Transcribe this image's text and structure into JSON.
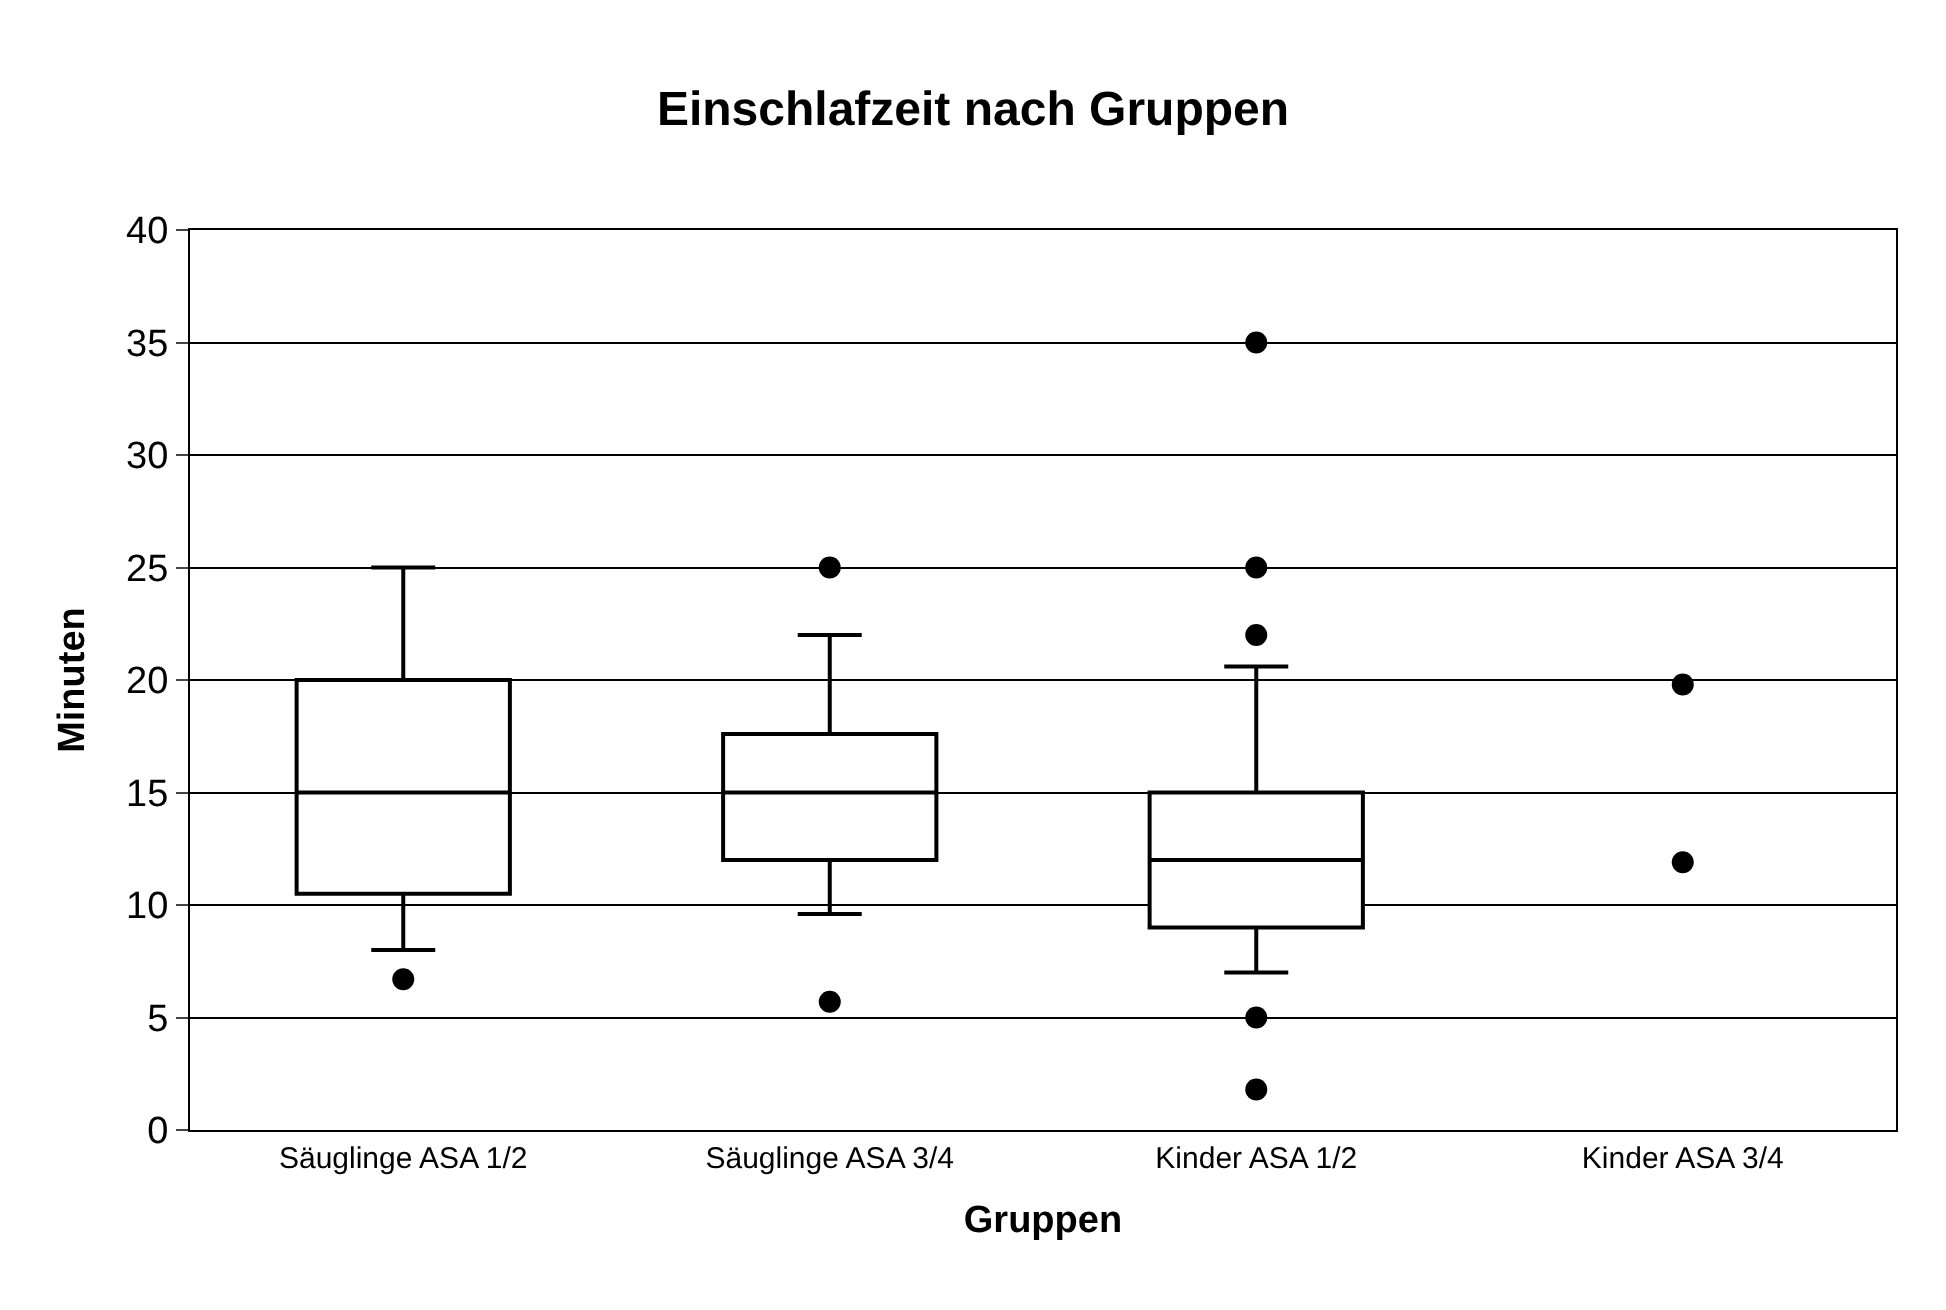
{
  "chart_data": {
    "type": "box",
    "title": "Einschlafzeit nach Gruppen",
    "xlabel": "Gruppen",
    "ylabel": "Minuten",
    "categories": [
      "Säuglinge ASA 1/2",
      "Säuglinge ASA 3/4",
      "Kinder ASA 1/2",
      "Kinder ASA 3/4"
    ],
    "boxes": [
      {
        "low": 8,
        "q1": 10.5,
        "median": 15,
        "q3": 20,
        "high": 25,
        "outliers": [
          6.7
        ]
      },
      {
        "low": 9.6,
        "q1": 12,
        "median": 15,
        "q3": 17.6,
        "high": 22,
        "outliers": [
          25,
          5.7
        ]
      },
      {
        "low": 7,
        "q1": 9,
        "median": 12,
        "q3": 15,
        "high": 20.6,
        "outliers": [
          35,
          25,
          22,
          5,
          1.8
        ]
      },
      null
    ],
    "series": [
      {
        "type": "scatter",
        "color": "#000000",
        "x": [
          "Kinder ASA 3/4",
          "Kinder ASA 3/4"
        ],
        "values": [
          19.8,
          11.9
        ]
      }
    ],
    "color": "#000000",
    "ylim": [
      0,
      40
    ],
    "yticks": [
      0,
      5,
      10,
      15,
      20,
      25,
      30,
      35,
      40
    ],
    "grid": "y"
  }
}
